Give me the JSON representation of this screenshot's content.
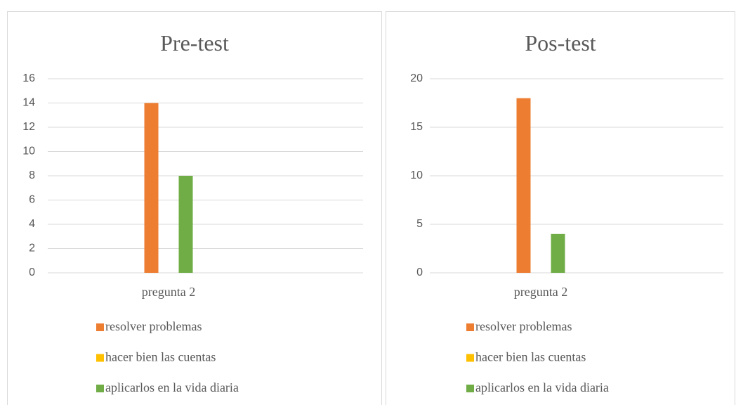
{
  "chart_data": [
    {
      "type": "bar",
      "title": "Pre-test",
      "categories": [
        "pregunta 2"
      ],
      "series": [
        {
          "name": "resolver problemas",
          "color": "#ed7d31",
          "values": [
            14
          ]
        },
        {
          "name": "hacer bien las cuentas",
          "color": "#ffc000",
          "values": [
            0
          ]
        },
        {
          "name": "aplicarlos en la vida diaria",
          "color": "#70ad47",
          "values": [
            8
          ]
        }
      ],
      "ylim": [
        0,
        16
      ],
      "yticks": [
        0,
        2,
        4,
        6,
        8,
        10,
        12,
        14,
        16
      ],
      "grid": true,
      "legend": "bottom"
    },
    {
      "type": "bar",
      "title": "Pos-test",
      "categories": [
        "pregunta 2"
      ],
      "series": [
        {
          "name": "resolver problemas",
          "color": "#ed7d31",
          "values": [
            18
          ]
        },
        {
          "name": "hacer bien las cuentas",
          "color": "#ffc000",
          "values": [
            0
          ]
        },
        {
          "name": "aplicarlos en la vida diaria",
          "color": "#70ad47",
          "values": [
            4
          ]
        }
      ],
      "ylim": [
        0,
        20
      ],
      "yticks": [
        0,
        5,
        10,
        15,
        20
      ],
      "grid": true,
      "legend": "bottom"
    }
  ]
}
